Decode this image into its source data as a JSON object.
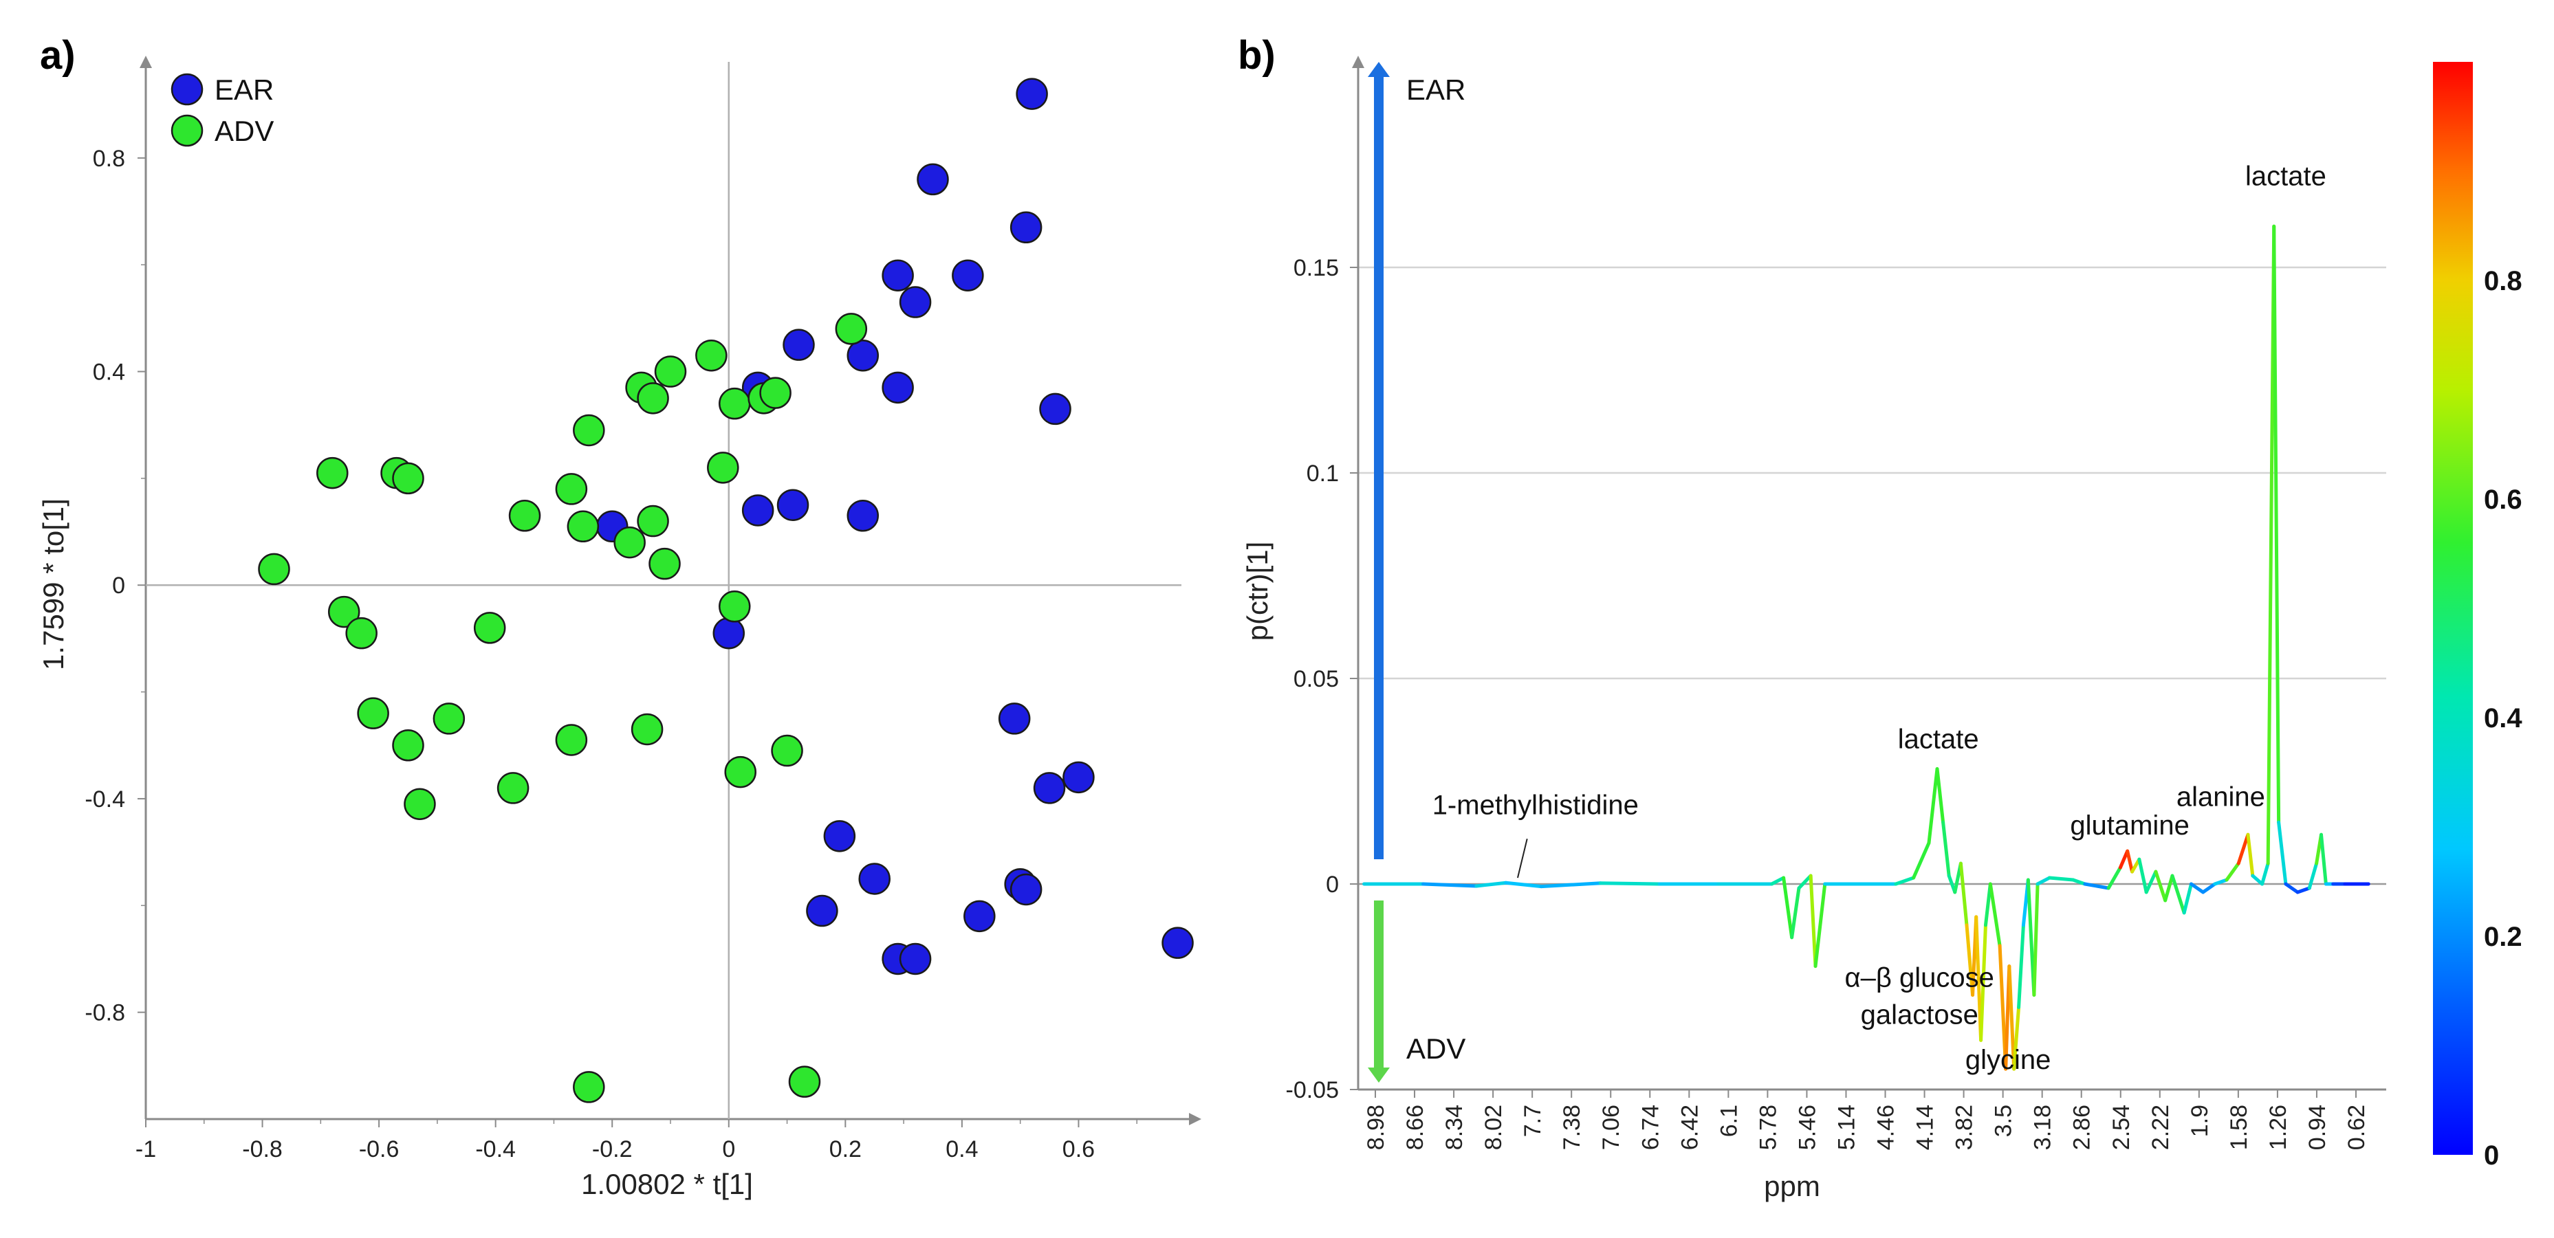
{
  "chart_data": [
    {
      "panel_label": "a)",
      "type": "scatter",
      "xlabel": "1.00802 * t[1]",
      "ylabel": "1.7599 * to[1]",
      "xlim": [
        -1.0,
        0.8
      ],
      "ylim": [
        -1.0,
        0.98
      ],
      "xticks": [
        "-1",
        "-0.8",
        "-0.6",
        "-0.4",
        "-0.2",
        "0",
        "0.2",
        "0.4",
        "0.6"
      ],
      "yticks": [
        "-0.8",
        "-0.4",
        "0",
        "0.4",
        "0.8"
      ],
      "legend_position": "top-left",
      "series": [
        {
          "name": "EAR",
          "color": "#1c1ce0",
          "points": [
            [
              0.52,
              0.92
            ],
            [
              0.51,
              0.67
            ],
            [
              0.35,
              0.76
            ],
            [
              0.41,
              0.58
            ],
            [
              0.29,
              0.58
            ],
            [
              0.32,
              0.53
            ],
            [
              0.56,
              0.33
            ],
            [
              0.29,
              0.37
            ],
            [
              0.23,
              0.43
            ],
            [
              0.12,
              0.45
            ],
            [
              0.05,
              0.37
            ],
            [
              0.23,
              0.13
            ],
            [
              0.11,
              0.15
            ],
            [
              0.05,
              0.14
            ],
            [
              -0.2,
              0.11
            ],
            [
              0.0,
              -0.09
            ],
            [
              0.49,
              -0.25
            ],
            [
              0.6,
              -0.36
            ],
            [
              0.55,
              -0.38
            ],
            [
              0.19,
              -0.47
            ],
            [
              0.25,
              -0.55
            ],
            [
              0.5,
              -0.56
            ],
            [
              0.51,
              -0.57
            ],
            [
              0.16,
              -0.61
            ],
            [
              0.43,
              -0.62
            ],
            [
              0.77,
              -0.67
            ],
            [
              0.29,
              -0.7
            ],
            [
              0.32,
              -0.7
            ]
          ]
        },
        {
          "name": "ADV",
          "color": "#2ee62e",
          "points": [
            [
              -0.78,
              0.03
            ],
            [
              -0.68,
              0.21
            ],
            [
              -0.57,
              0.21
            ],
            [
              -0.55,
              0.2
            ],
            [
              -0.66,
              -0.05
            ],
            [
              -0.63,
              -0.09
            ],
            [
              -0.61,
              -0.24
            ],
            [
              -0.55,
              -0.3
            ],
            [
              -0.53,
              -0.41
            ],
            [
              -0.48,
              -0.25
            ],
            [
              -0.41,
              -0.08
            ],
            [
              -0.37,
              -0.38
            ],
            [
              -0.35,
              0.13
            ],
            [
              -0.27,
              0.18
            ],
            [
              -0.25,
              0.11
            ],
            [
              -0.24,
              0.29
            ],
            [
              -0.27,
              -0.29
            ],
            [
              -0.24,
              -0.94
            ],
            [
              -0.17,
              0.08
            ],
            [
              -0.15,
              0.37
            ],
            [
              -0.13,
              0.35
            ],
            [
              -0.13,
              0.12
            ],
            [
              -0.14,
              -0.27
            ],
            [
              -0.11,
              0.04
            ],
            [
              -0.1,
              0.4
            ],
            [
              -0.03,
              0.43
            ],
            [
              -0.01,
              0.22
            ],
            [
              0.01,
              0.34
            ],
            [
              0.06,
              0.35
            ],
            [
              0.08,
              0.36
            ],
            [
              0.01,
              -0.04
            ],
            [
              0.02,
              -0.35
            ],
            [
              0.1,
              -0.31
            ],
            [
              0.13,
              -0.93
            ],
            [
              0.21,
              0.48
            ]
          ]
        }
      ]
    },
    {
      "panel_label": "b)",
      "type": "line",
      "xlabel": "ppm",
      "ylabel": "p(ctr)[1]",
      "xlim": [
        9.05,
        0.35
      ],
      "ylim": [
        -0.05,
        0.2
      ],
      "xticks": [
        "8.98",
        "8.66",
        "8.34",
        "8.02",
        "7.7",
        "7.38",
        "7.06",
        "6.74",
        "6.42",
        "6.1",
        "5.78",
        "5.46",
        "5.14",
        "4.46",
        "4.14",
        "3.82",
        "3.5",
        "3.18",
        "2.86",
        "2.54",
        "2.22",
        "1.9",
        "1.58",
        "1.26",
        "0.94",
        "0.62"
      ],
      "yticks": [
        "-0.05",
        "0",
        "0.05",
        "0.1",
        "0.15"
      ],
      "direction_labels": {
        "up": "EAR",
        "down": "ADV"
      },
      "colorbar": {
        "min": 0,
        "max": 1,
        "ticks": [
          "0",
          "0.2",
          "0.4",
          "0.6",
          "0.8"
        ],
        "colors": [
          "#0000ff",
          "#00a8ff",
          "#00e8d0",
          "#40f020",
          "#a0f000",
          "#f0d000",
          "#ff7000",
          "#ff0000"
        ]
      },
      "annotations": [
        {
          "text": "lactate",
          "x": 1.2,
          "y": 0.17
        },
        {
          "text": "lactate",
          "x": 4.14,
          "y": 0.033
        },
        {
          "text": "alanine",
          "x": 1.75,
          "y": 0.019
        },
        {
          "text": "glutamine",
          "x": 2.52,
          "y": 0.012
        },
        {
          "text": "1-methylhistidine",
          "x": 7.55,
          "y": 0.017
        },
        {
          "text": "α–β glucose",
          "x": 4.3,
          "y": -0.025
        },
        {
          "text": "galactose",
          "x": 4.3,
          "y": -0.034
        },
        {
          "text": "glycine",
          "x": 3.55,
          "y": -0.045
        }
      ],
      "points": [
        [
          9.0,
          0.0,
          0.35
        ],
        [
          8.5,
          0.0,
          0.3
        ],
        [
          8.05,
          -0.0005,
          0.15
        ],
        [
          7.8,
          0.0003,
          0.5
        ],
        [
          7.5,
          -0.0006,
          0.05
        ],
        [
          7.0,
          0.0002,
          0.45
        ],
        [
          6.5,
          0.0,
          0.3
        ],
        [
          6.0,
          0.0,
          0.3
        ],
        [
          5.55,
          0.0,
          0.35
        ],
        [
          5.45,
          0.0015,
          0.5
        ],
        [
          5.38,
          -0.013,
          0.62
        ],
        [
          5.32,
          -0.001,
          0.4
        ],
        [
          5.22,
          0.002,
          0.5
        ],
        [
          5.18,
          -0.02,
          0.85
        ],
        [
          5.1,
          0.0,
          0.3
        ],
        [
          4.7,
          0.0,
          0.3
        ],
        [
          4.5,
          0.0,
          0.3
        ],
        [
          4.35,
          0.0015,
          0.55
        ],
        [
          4.22,
          0.01,
          0.55
        ],
        [
          4.15,
          0.028,
          0.58
        ],
        [
          4.1,
          0.015,
          0.55
        ],
        [
          4.05,
          0.002,
          0.45
        ],
        [
          4.0,
          -0.002,
          0.45
        ],
        [
          3.95,
          0.005,
          0.55
        ],
        [
          3.9,
          -0.01,
          0.75
        ],
        [
          3.85,
          -0.027,
          0.88
        ],
        [
          3.82,
          -0.008,
          0.8
        ],
        [
          3.78,
          -0.038,
          0.82
        ],
        [
          3.74,
          -0.01,
          0.6
        ],
        [
          3.7,
          0.0,
          0.4
        ],
        [
          3.62,
          -0.015,
          0.75
        ],
        [
          3.57,
          -0.045,
          0.95
        ],
        [
          3.54,
          -0.02,
          0.8
        ],
        [
          3.5,
          -0.045,
          0.88
        ],
        [
          3.46,
          -0.03,
          0.6
        ],
        [
          3.42,
          -0.01,
          0.3
        ],
        [
          3.38,
          0.001,
          0.25
        ],
        [
          3.33,
          -0.027,
          0.8
        ],
        [
          3.3,
          0.0,
          0.4
        ],
        [
          3.2,
          0.0015,
          0.3
        ],
        [
          3.0,
          0.001,
          0.55
        ],
        [
          2.9,
          0.0,
          0.3
        ],
        [
          2.7,
          -0.001,
          0.1
        ],
        [
          2.6,
          0.004,
          0.95
        ],
        [
          2.54,
          0.008,
          0.98
        ],
        [
          2.5,
          0.003,
          0.9
        ],
        [
          2.44,
          0.006,
          0.6
        ],
        [
          2.38,
          -0.002,
          0.3
        ],
        [
          2.3,
          0.003,
          0.6
        ],
        [
          2.22,
          -0.004,
          0.6
        ],
        [
          2.16,
          0.002,
          0.55
        ],
        [
          2.06,
          -0.007,
          0.5
        ],
        [
          2.0,
          0.0,
          0.3
        ],
        [
          1.9,
          -0.002,
          0.1
        ],
        [
          1.8,
          0.0,
          0.3
        ],
        [
          1.7,
          0.001,
          0.3
        ],
        [
          1.6,
          0.005,
          0.9
        ],
        [
          1.52,
          0.012,
          0.99
        ],
        [
          1.48,
          0.002,
          0.5
        ],
        [
          1.4,
          0.0,
          0.2
        ],
        [
          1.35,
          0.005,
          0.55
        ],
        [
          1.3,
          0.16,
          0.65
        ],
        [
          1.26,
          0.015,
          0.5
        ],
        [
          1.2,
          0.0,
          0.2
        ],
        [
          1.1,
          -0.002,
          0.05
        ],
        [
          1.0,
          -0.001,
          0.15
        ],
        [
          0.94,
          0.005,
          0.6
        ],
        [
          0.9,
          0.012,
          0.6
        ],
        [
          0.86,
          0.0,
          0.4
        ],
        [
          0.8,
          0.0,
          0.15
        ],
        [
          0.7,
          0.0,
          0.05
        ],
        [
          0.6,
          0.0,
          0.05
        ],
        [
          0.5,
          0.0,
          0.05
        ]
      ]
    }
  ]
}
